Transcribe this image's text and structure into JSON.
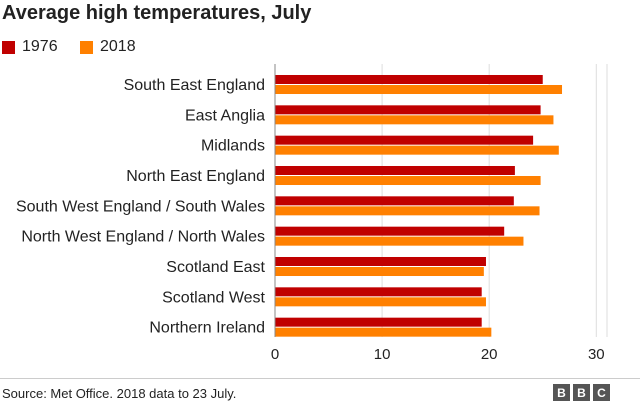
{
  "chart_data": {
    "type": "bar",
    "orientation": "horizontal",
    "title": "Average high temperatures, July",
    "categories": [
      "South East England",
      "East Anglia",
      "Midlands",
      "North East England",
      "South West England / South Wales",
      "North West England / North Wales",
      "Scotland East",
      "Scotland West",
      "Northern Ireland"
    ],
    "series": [
      {
        "name": "1976",
        "color": "#c00000",
        "values": [
          25.0,
          24.8,
          24.1,
          22.4,
          22.3,
          21.4,
          19.7,
          19.3,
          19.3
        ]
      },
      {
        "name": "2018",
        "color": "#ff8000",
        "values": [
          26.8,
          26.0,
          26.5,
          24.8,
          24.7,
          23.2,
          19.5,
          19.7,
          20.2
        ]
      }
    ],
    "xlim": [
      0,
      31
    ],
    "xticks": [
      0,
      10,
      20,
      30
    ],
    "xlabel": "",
    "ylabel": "",
    "grid": true,
    "legend": "top-left"
  },
  "footer": {
    "source": "Source: Met Office. 2018 data to 23 July.",
    "logo_letters": [
      "B",
      "B",
      "C"
    ]
  }
}
